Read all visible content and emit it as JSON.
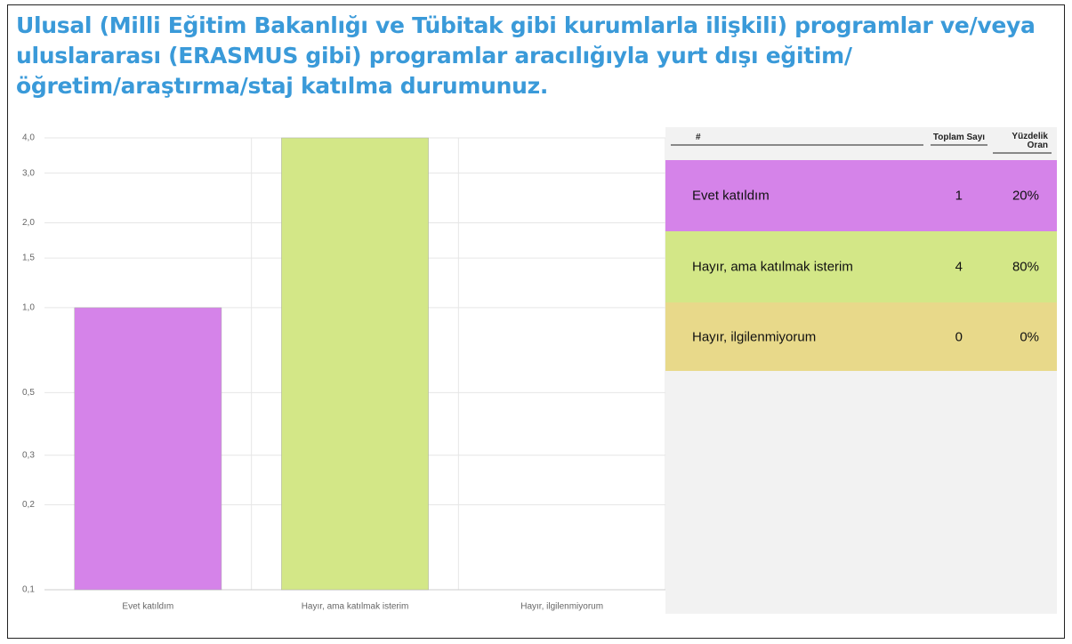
{
  "title": "Ulusal (Milli Eğitim Bakanlığı ve Tübitak gibi kurumlarla ilişkili) programlar ve/veya uluslararası (ERASMUS gibi) programlar aracılığıyla yurt dışı eğitim/öğretim/araştırma/staj katılma durumunuz.",
  "chart_data": {
    "type": "bar",
    "log_scale": true,
    "grid": true,
    "categories": [
      "Evet katıldım",
      "Hayır, ama katılmak isterim",
      "Hayır, ilgilenmiyorum"
    ],
    "values": [
      1,
      4,
      0
    ],
    "colors": [
      "#d583e9",
      "#d3e787",
      "#e8d98a"
    ],
    "ylim": [
      0.1,
      4
    ],
    "yticks": [
      {
        "value": 0.1,
        "label": "0,1"
      },
      {
        "value": 0.2,
        "label": "0,2"
      },
      {
        "value": 0.3,
        "label": "0,3"
      },
      {
        "value": 0.5,
        "label": "0,5"
      },
      {
        "value": 1,
        "label": "1,0"
      },
      {
        "value": 1.5,
        "label": "1,5"
      },
      {
        "value": 2,
        "label": "2,0"
      },
      {
        "value": 3,
        "label": "3,0"
      },
      {
        "value": 4,
        "label": "4,0"
      }
    ]
  },
  "table": {
    "headers": [
      "#",
      "Toplam Sayı",
      "Yüzdelik Oran"
    ],
    "rows": [
      [
        "Evet katıldım",
        "1",
        "20%"
      ],
      [
        "Hayır, ama katılmak isterim",
        "4",
        "80%"
      ],
      [
        "Hayır, ilgilenmiyorum",
        "0",
        "0%"
      ]
    ]
  }
}
